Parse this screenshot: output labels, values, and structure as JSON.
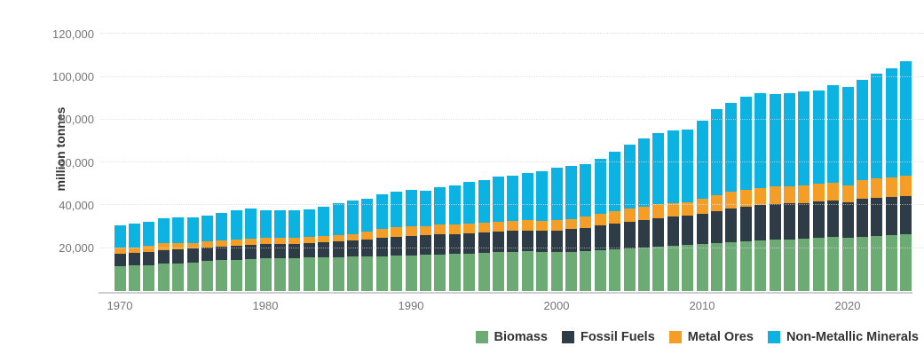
{
  "chart": {
    "y_axis_title": "million tonnes",
    "y_ticks": [
      {
        "label": "20,000",
        "value": 20000
      },
      {
        "label": "40,000",
        "value": 40000
      },
      {
        "label": "60,000",
        "value": 60000
      },
      {
        "label": "80,000",
        "value": 80000
      },
      {
        "label": "100,000",
        "value": 100000
      },
      {
        "label": "120,000",
        "value": 120000
      }
    ],
    "x_ticks": [
      "1970",
      "1980",
      "1990",
      "2000",
      "2010",
      "2020"
    ]
  },
  "legend": {
    "items": [
      {
        "label": "Biomass",
        "color": "#6cab74"
      },
      {
        "label": "Fossil Fuels",
        "color": "#2d3c46"
      },
      {
        "label": "Metal Ores",
        "color": "#f59e27"
      },
      {
        "label": "Non-Metallic Minerals",
        "color": "#0cb2e2"
      }
    ]
  },
  "chart_data": {
    "type": "bar",
    "stacked": true,
    "title": "",
    "xlabel": "",
    "ylabel": "million tonnes",
    "ylim": [
      0,
      120000
    ],
    "grid": "dotted-horizontal",
    "legend_position": "bottom-right",
    "x": [
      1970,
      1971,
      1972,
      1973,
      1974,
      1975,
      1976,
      1977,
      1978,
      1979,
      1980,
      1981,
      1982,
      1983,
      1984,
      1985,
      1986,
      1987,
      1988,
      1989,
      1990,
      1991,
      1992,
      1993,
      1994,
      1995,
      1996,
      1997,
      1998,
      1999,
      2000,
      2001,
      2002,
      2003,
      2004,
      2005,
      2006,
      2007,
      2008,
      2009,
      2010,
      2011,
      2012,
      2013,
      2014,
      2015,
      2016,
      2017,
      2018,
      2019,
      2020,
      2021,
      2022,
      2023,
      2024
    ],
    "series": [
      {
        "name": "Biomass",
        "color": "#6cab74",
        "values": [
          11600,
          11900,
          12000,
          12700,
          13000,
          13400,
          13900,
          14400,
          14700,
          15000,
          15200,
          15300,
          15500,
          15600,
          15800,
          15900,
          16000,
          16100,
          16200,
          16500,
          16700,
          16900,
          17100,
          17300,
          17500,
          17900,
          18200,
          18400,
          18500,
          18200,
          18300,
          18200,
          18700,
          19200,
          19600,
          20000,
          20400,
          20800,
          21300,
          21700,
          21900,
          22200,
          22700,
          23100,
          23500,
          24000,
          24200,
          24400,
          25000,
          25400,
          24900,
          25400,
          25700,
          26100,
          26400
        ]
      },
      {
        "name": "Fossil Fuels",
        "color": "#2d3c46",
        "values": [
          5800,
          5900,
          6200,
          6500,
          6400,
          6400,
          6500,
          6500,
          6600,
          6600,
          6600,
          6600,
          6600,
          6700,
          6900,
          7200,
          7500,
          7900,
          8600,
          8900,
          9100,
          9200,
          9400,
          9300,
          9300,
          9500,
          9600,
          9600,
          9600,
          9800,
          10000,
          10600,
          10900,
          11500,
          11900,
          12300,
          12700,
          13200,
          13300,
          13400,
          14200,
          15000,
          15700,
          16300,
          16500,
          16600,
          16600,
          16800,
          16800,
          17000,
          16600,
          17600,
          17900,
          17900,
          18000
        ]
      },
      {
        "name": "Metal Ores",
        "color": "#f59e27",
        "values": [
          2800,
          2600,
          2800,
          3000,
          2900,
          2600,
          2700,
          2800,
          2900,
          3000,
          3000,
          3000,
          2900,
          2900,
          2900,
          3000,
          3200,
          3700,
          4400,
          4400,
          4400,
          4300,
          4400,
          4500,
          4700,
          4700,
          4700,
          4800,
          4900,
          4800,
          4800,
          4800,
          5100,
          5400,
          5800,
          6200,
          6400,
          6500,
          6500,
          6500,
          6900,
          7600,
          7800,
          8000,
          8200,
          8300,
          8200,
          8000,
          8400,
          8300,
          7800,
          8700,
          9000,
          9000,
          9400
        ]
      },
      {
        "name": "Non-Metallic Minerals",
        "color": "#0cb2e2",
        "values": [
          10400,
          11000,
          11300,
          11800,
          11900,
          11800,
          12200,
          12700,
          13300,
          13900,
          12900,
          12700,
          12700,
          13000,
          13600,
          14900,
          15400,
          15500,
          15900,
          16500,
          17200,
          16400,
          17500,
          18200,
          19300,
          19700,
          20900,
          21200,
          22100,
          23200,
          24300,
          24800,
          24600,
          25800,
          27900,
          29800,
          31700,
          33400,
          34000,
          33800,
          36400,
          39900,
          41500,
          43100,
          44000,
          43000,
          43300,
          44100,
          43500,
          45400,
          45900,
          46700,
          48700,
          51000,
          53300
        ]
      }
    ]
  }
}
